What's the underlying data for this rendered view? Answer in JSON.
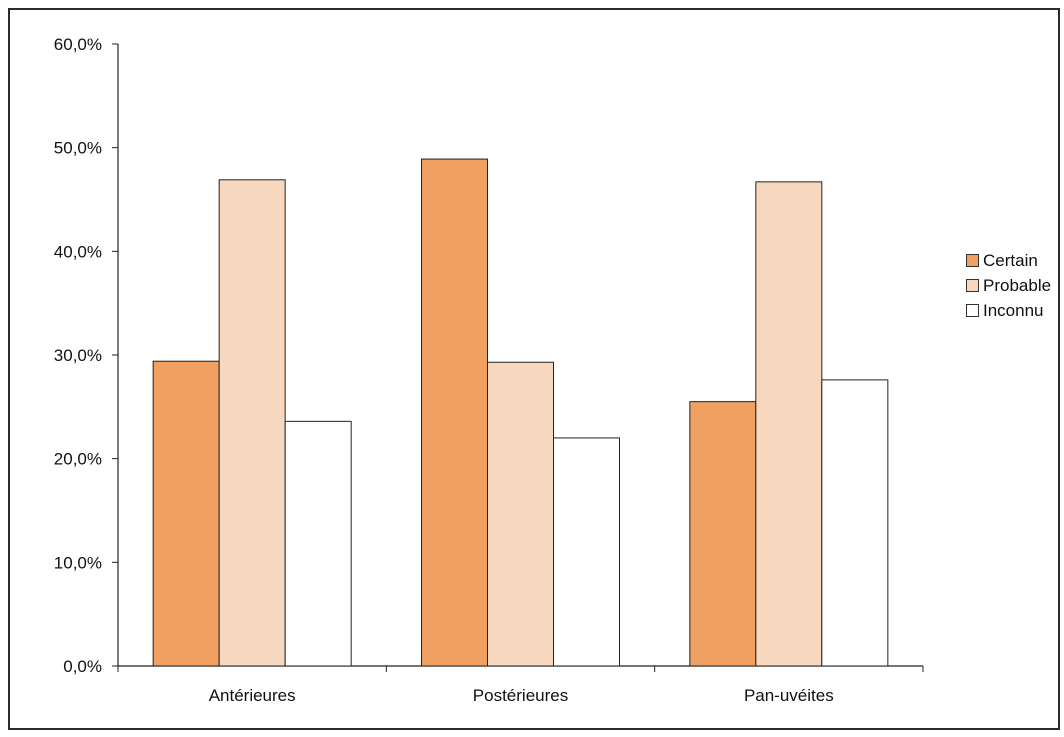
{
  "chart_data": {
    "type": "bar",
    "categories": [
      "Antérieures",
      "Postérieures",
      "Pan-uvéites"
    ],
    "series": [
      {
        "name": "Certain",
        "values": [
          29.4,
          48.9,
          25.5
        ],
        "color": "#f0a060"
      },
      {
        "name": "Probable",
        "values": [
          46.9,
          29.3,
          46.7
        ],
        "color": "#f7d8bf"
      },
      {
        "name": "Inconnu",
        "values": [
          23.6,
          22.0,
          27.6
        ],
        "color": "#ffffff"
      }
    ],
    "ylim": [
      0,
      60
    ],
    "yticks": [
      "0,0%",
      "10,0%",
      "20,0%",
      "30,0%",
      "40,0%",
      "50,0%",
      "60,0%"
    ],
    "ytick_values": [
      0,
      10,
      20,
      30,
      40,
      50,
      60
    ],
    "title": "",
    "xlabel": "",
    "ylabel": "",
    "legend_position": "right",
    "grid": false
  }
}
